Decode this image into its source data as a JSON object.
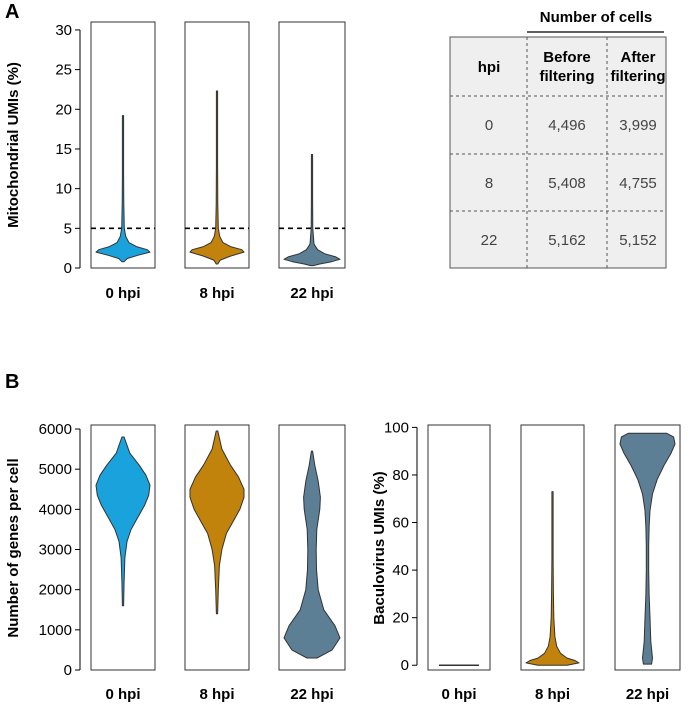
{
  "panel_a_label": "A",
  "panel_b_label": "B",
  "colors": {
    "0 hpi": "#1aa2dc",
    "8 hpi": "#c1830c",
    "22 hpi": "#5c7f96",
    "outline": "#333333",
    "table_bg": "#efefef"
  },
  "chart_data": [
    {
      "id": "mito",
      "type": "violin",
      "ylabel": "Mitochondrial UMIs (%)",
      "ylim": [
        0,
        31
      ],
      "yticks": [
        0,
        5,
        10,
        15,
        20,
        25,
        30
      ],
      "threshold": 5,
      "groups": [
        "0 hpi",
        "8 hpi",
        "22 hpi"
      ],
      "violins": [
        {
          "group": "0 hpi",
          "y": [
            0.8,
            1.2,
            1.6,
            2.0,
            2.3,
            2.7,
            3.2,
            4.0,
            5.0,
            8.0,
            12.0,
            19.2
          ],
          "w": [
            0.04,
            0.16,
            0.55,
            1.0,
            0.9,
            0.5,
            0.22,
            0.1,
            0.05,
            0.03,
            0.02,
            0.01
          ]
        },
        {
          "group": "8 hpi",
          "y": [
            0.5,
            1.0,
            1.5,
            2.0,
            2.3,
            2.7,
            3.2,
            4.0,
            5.0,
            8.0,
            13.0,
            22.3
          ],
          "w": [
            0.03,
            0.12,
            0.5,
            1.0,
            0.92,
            0.5,
            0.22,
            0.1,
            0.05,
            0.03,
            0.02,
            0.01
          ]
        },
        {
          "group": "22 hpi",
          "y": [
            0.3,
            0.5,
            0.8,
            1.1,
            1.4,
            1.8,
            2.3,
            3.0,
            5.0,
            9.0,
            14.3
          ],
          "w": [
            0.05,
            0.28,
            0.7,
            1.0,
            0.85,
            0.45,
            0.2,
            0.07,
            0.03,
            0.015,
            0.008
          ]
        }
      ]
    },
    {
      "id": "genes",
      "type": "violin",
      "ylabel": "Number of genes per cell",
      "ylim": [
        0,
        6100
      ],
      "yticks": [
        0,
        1000,
        2000,
        3000,
        4000,
        5000,
        6000
      ],
      "groups": [
        "0 hpi",
        "8 hpi",
        "22 hpi"
      ],
      "violins": [
        {
          "group": "0 hpi",
          "y": [
            1600,
            2200,
            2800,
            3200,
            3500,
            3800,
            4100,
            4350,
            4600,
            4850,
            5100,
            5400,
            5800
          ],
          "w": [
            0.02,
            0.04,
            0.07,
            0.15,
            0.3,
            0.55,
            0.8,
            0.95,
            1.0,
            0.85,
            0.6,
            0.25,
            0.04
          ]
        },
        {
          "group": "8 hpi",
          "y": [
            1400,
            2000,
            2600,
            3000,
            3400,
            3700,
            4000,
            4300,
            4500,
            4800,
            5100,
            5500,
            5950
          ],
          "w": [
            0.02,
            0.05,
            0.09,
            0.18,
            0.35,
            0.6,
            0.85,
            1.0,
            1.0,
            0.8,
            0.5,
            0.18,
            0.03
          ]
        },
        {
          "group": "22 hpi",
          "y": [
            300,
            500,
            800,
            1100,
            1500,
            2000,
            2500,
            3000,
            3500,
            4000,
            4300,
            4700,
            5100,
            5450
          ],
          "w": [
            0.18,
            0.72,
            1.0,
            0.82,
            0.42,
            0.22,
            0.16,
            0.15,
            0.17,
            0.28,
            0.3,
            0.22,
            0.1,
            0.02
          ]
        }
      ]
    },
    {
      "id": "baculo",
      "type": "violin",
      "ylabel": "Baculovirus UMIs (%)",
      "ylim": [
        -2,
        101
      ],
      "yticks": [
        0,
        20,
        40,
        60,
        80,
        100
      ],
      "groups": [
        "0 hpi",
        "8 hpi",
        "22 hpi"
      ],
      "violins": [
        {
          "group": "0 hpi",
          "y": [
            0,
            0.01
          ],
          "w": [
            1.0,
            1.0
          ]
        },
        {
          "group": "8 hpi",
          "y": [
            0,
            1,
            2,
            3,
            5,
            8,
            12,
            20,
            30,
            45,
            60,
            73
          ],
          "w": [
            0.55,
            1.0,
            0.85,
            0.55,
            0.3,
            0.16,
            0.09,
            0.05,
            0.035,
            0.02,
            0.012,
            0.008
          ]
        },
        {
          "group": "22 hpi",
          "y": [
            0.5,
            3,
            10,
            20,
            30,
            40,
            50,
            58,
            65,
            72,
            78,
            84,
            89,
            93,
            96,
            97.5
          ],
          "w": [
            0.15,
            0.18,
            0.12,
            0.09,
            0.06,
            0.045,
            0.045,
            0.06,
            0.09,
            0.18,
            0.35,
            0.6,
            0.85,
            1.0,
            0.95,
            0.7
          ]
        }
      ]
    }
  ],
  "table": {
    "group_header": "Number of cells",
    "col_hpi": "hpi",
    "col_before_line1": "Before",
    "col_before_line2": "filtering",
    "col_after_line1": "After",
    "col_after_line2": "filtering",
    "rows": [
      {
        "hpi": "0",
        "before": "4,496",
        "after": "3,999"
      },
      {
        "hpi": "8",
        "before": "5,408",
        "after": "4,755"
      },
      {
        "hpi": "22",
        "before": "5,162",
        "after": "5,152"
      }
    ]
  }
}
